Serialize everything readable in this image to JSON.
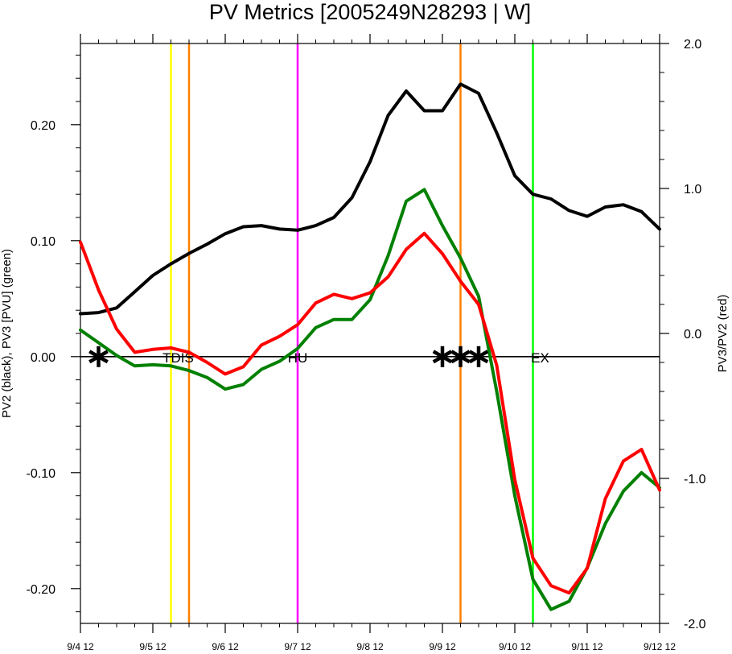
{
  "chart_data": {
    "type": "line",
    "title": "PV Metrics [2005249N28293 | W]",
    "ylabel_left": "PV2 (black), PV3 [PVU] (green)",
    "ylabel_right": "PV3/PV2 (red)",
    "xlabel": "",
    "x_tick_labels": [
      "9/4 12",
      "9/5 12",
      "9/6 12",
      "9/7 12",
      "9/8 12",
      "9/9 12",
      "9/10 12",
      "9/11 12",
      "9/12 12"
    ],
    "xlim": [
      0,
      8
    ],
    "ylim_left": [
      -0.23,
      0.27
    ],
    "ylim_right": [
      -2.0,
      2.0
    ],
    "y_left_tick_labels": [
      "0.20",
      "0.10",
      "0.00",
      "-0.10",
      "-0.20"
    ],
    "y_left_ticks": [
      0.2,
      0.1,
      0.0,
      -0.1,
      -0.2
    ],
    "y_right_tick_labels": [
      "2.0",
      "1.0",
      "0.0",
      "-1.0",
      "-2.0"
    ],
    "y_right_ticks": [
      2.0,
      1.0,
      0.0,
      -1.0,
      -2.0
    ],
    "x": [
      0,
      0.25,
      0.5,
      0.75,
      1.0,
      1.25,
      1.5,
      1.75,
      2.0,
      2.25,
      2.5,
      2.75,
      3.0,
      3.25,
      3.5,
      3.75,
      4.0,
      4.25,
      4.5,
      4.75,
      5.0,
      5.25,
      5.5,
      5.75,
      6.0,
      6.25,
      6.5,
      6.75,
      7.0,
      7.25,
      7.5,
      7.75,
      8.0
    ],
    "series": [
      {
        "axis": "left",
        "color": "#000000",
        "values": [
          0.037,
          0.038,
          0.042,
          0.056,
          0.07,
          0.08,
          0.089,
          0.097,
          0.106,
          0.112,
          0.113,
          0.11,
          0.109,
          0.113,
          0.12,
          0.137,
          0.168,
          0.208,
          0.229,
          0.212,
          0.212,
          0.235,
          0.227,
          0.193,
          0.156,
          0.14,
          0.136,
          0.126,
          0.121,
          0.129,
          0.131,
          0.125,
          0.11
        ]
      },
      {
        "axis": "left",
        "color": "#008000",
        "values": [
          0.023,
          0.012,
          0.001,
          -0.008,
          -0.007,
          -0.008,
          -0.012,
          -0.018,
          -0.028,
          -0.024,
          -0.011,
          -0.004,
          0.007,
          0.025,
          0.032,
          0.032,
          0.049,
          0.087,
          0.134,
          0.144,
          0.113,
          0.085,
          0.052,
          -0.03,
          -0.12,
          -0.192,
          -0.218,
          -0.211,
          -0.182,
          -0.144,
          -0.116,
          -0.1,
          -0.113
        ]
      },
      {
        "axis": "right",
        "color": "#ff0000",
        "values": [
          0.63,
          0.3,
          0.03,
          -0.13,
          -0.11,
          -0.1,
          -0.13,
          -0.2,
          -0.28,
          -0.23,
          -0.08,
          -0.02,
          0.06,
          0.21,
          0.27,
          0.24,
          0.28,
          0.39,
          0.58,
          0.69,
          0.55,
          0.36,
          0.2,
          -0.22,
          -1.01,
          -1.55,
          -1.74,
          -1.79,
          -1.62,
          -1.14,
          -0.88,
          -0.8,
          -1.08
        ]
      }
    ],
    "vertical_markers": [
      {
        "x": 1.25,
        "color": "#ffff00"
      },
      {
        "x": 1.5,
        "color": "#ff8000"
      },
      {
        "x": 3.0,
        "color": "#ff00ff"
      },
      {
        "x": 5.25,
        "color": "#ff8000"
      },
      {
        "x": 6.25,
        "color": "#00ff00"
      }
    ],
    "annotations": [
      {
        "text": "TDIS",
        "x": 1.35
      },
      {
        "text": "HU",
        "x": 3.0
      },
      {
        "text": "EX",
        "x": 6.35
      }
    ],
    "stars": [
      0.25,
      5.0,
      5.25,
      5.5
    ],
    "zero_line": true,
    "grid": false,
    "legend": "none"
  }
}
